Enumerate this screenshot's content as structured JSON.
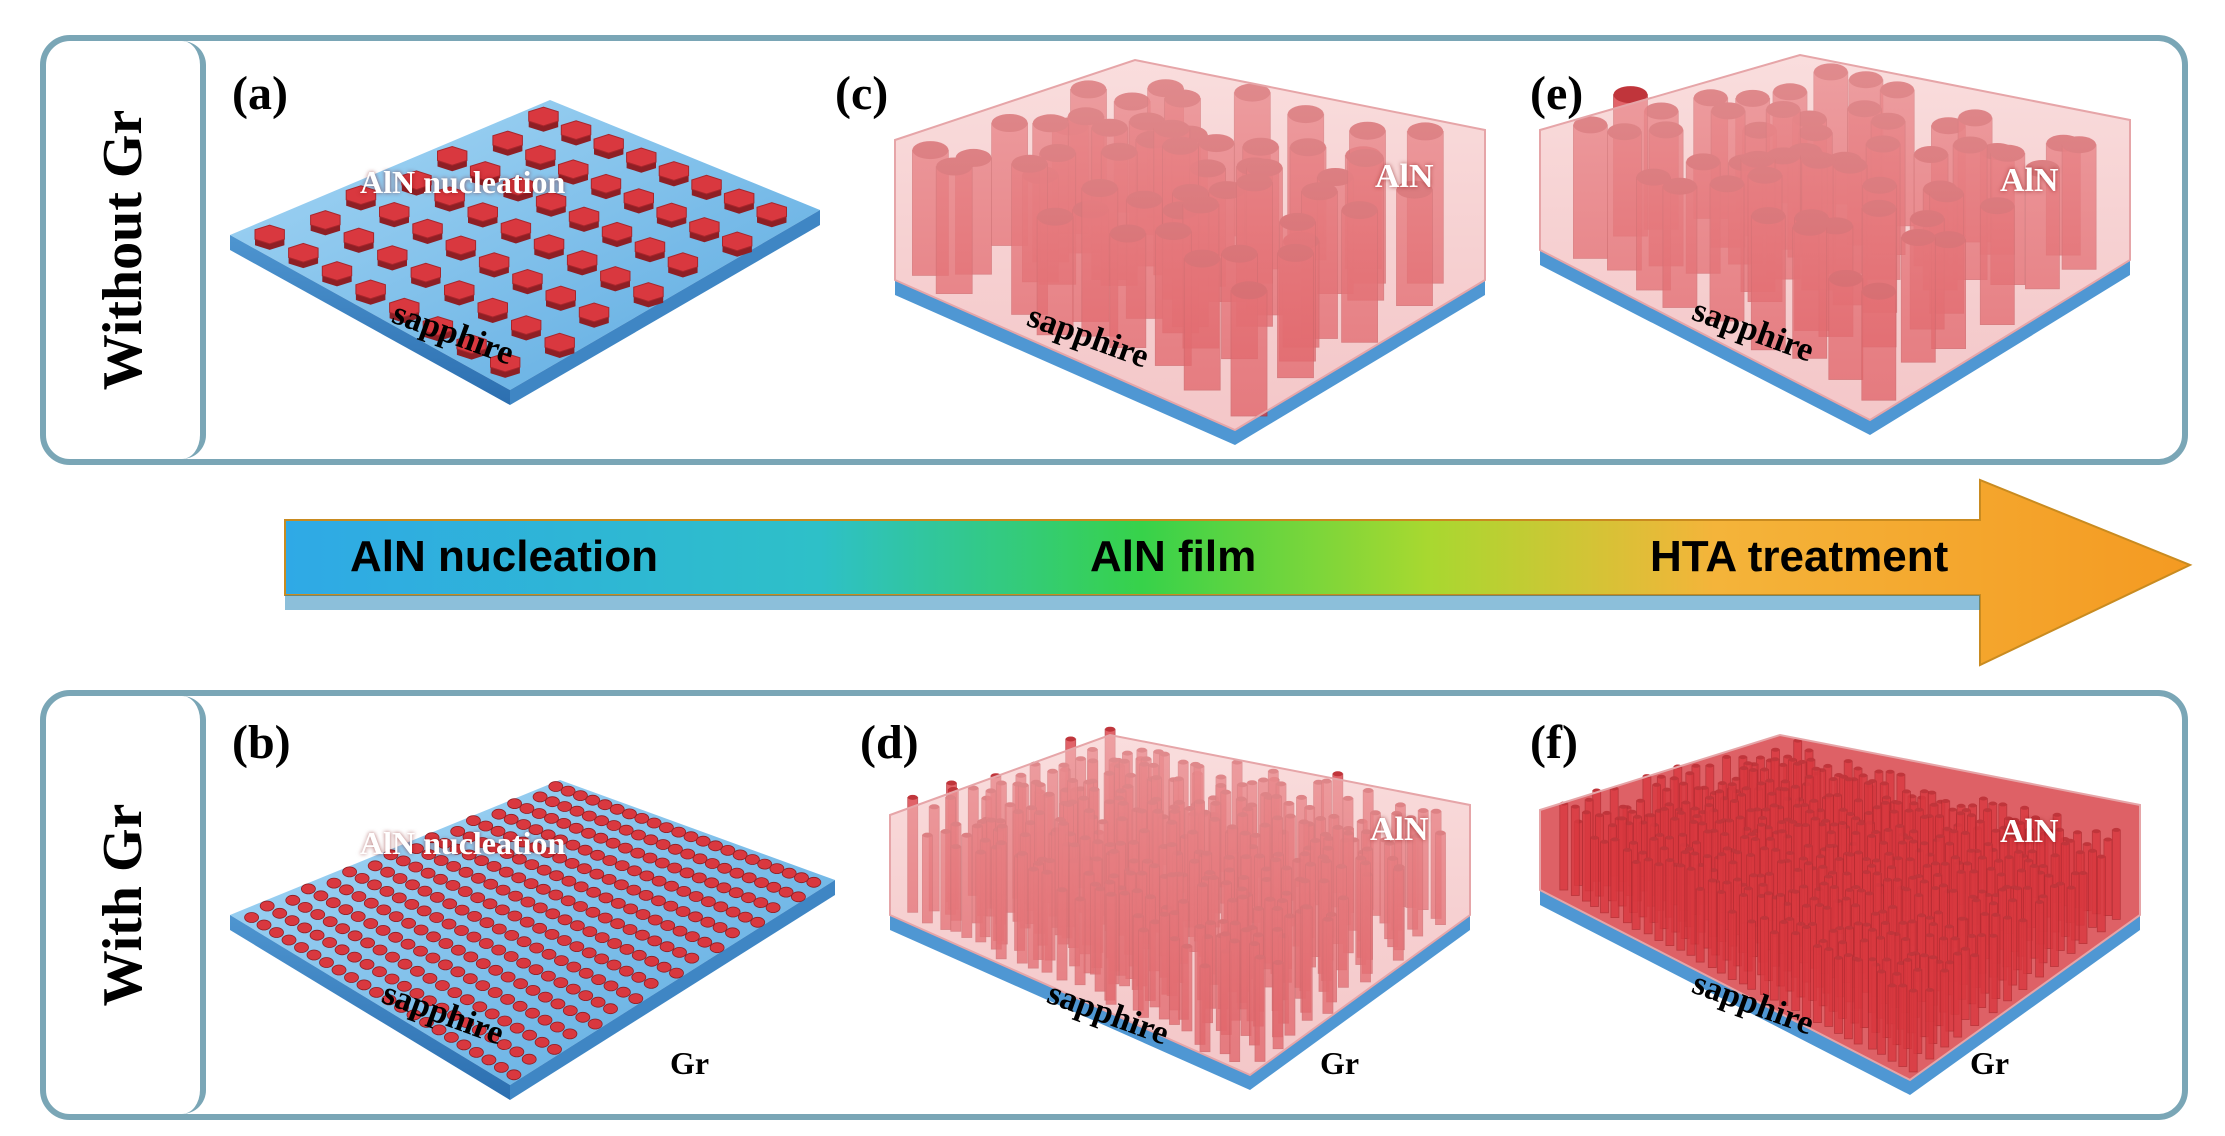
{
  "rows": {
    "top_label": "Without Gr",
    "bottom_label": "With Gr"
  },
  "panels": {
    "a": {
      "label": "(a)",
      "text": "AlN nucleation",
      "substrate": "sapphire"
    },
    "c": {
      "label": "(c)",
      "text": "AlN",
      "substrate": "sapphire"
    },
    "e": {
      "label": "(e)",
      "text": "AlN",
      "substrate": "sapphire"
    },
    "b": {
      "label": "(b)",
      "text": "AlN nucleation",
      "substrate": "sapphire",
      "layer": "Gr"
    },
    "d": {
      "label": "(d)",
      "text": "AlN",
      "substrate": "sapphire",
      "layer": "Gr"
    },
    "f": {
      "label": "(f)",
      "text": "AlN",
      "substrate": "sapphire",
      "layer": "Gr"
    }
  },
  "arrow": {
    "stage1": "AlN nucleation",
    "stage2": "AlN film",
    "stage3": "HTA treatment"
  },
  "colors": {
    "frame": "#7aa6b6",
    "crystal": "#d9383f",
    "substrate": "#6fb6e8",
    "arrow_start": "#2fa9e6",
    "arrow_mid": "#37d24a",
    "arrow_end": "#f4a12a"
  }
}
